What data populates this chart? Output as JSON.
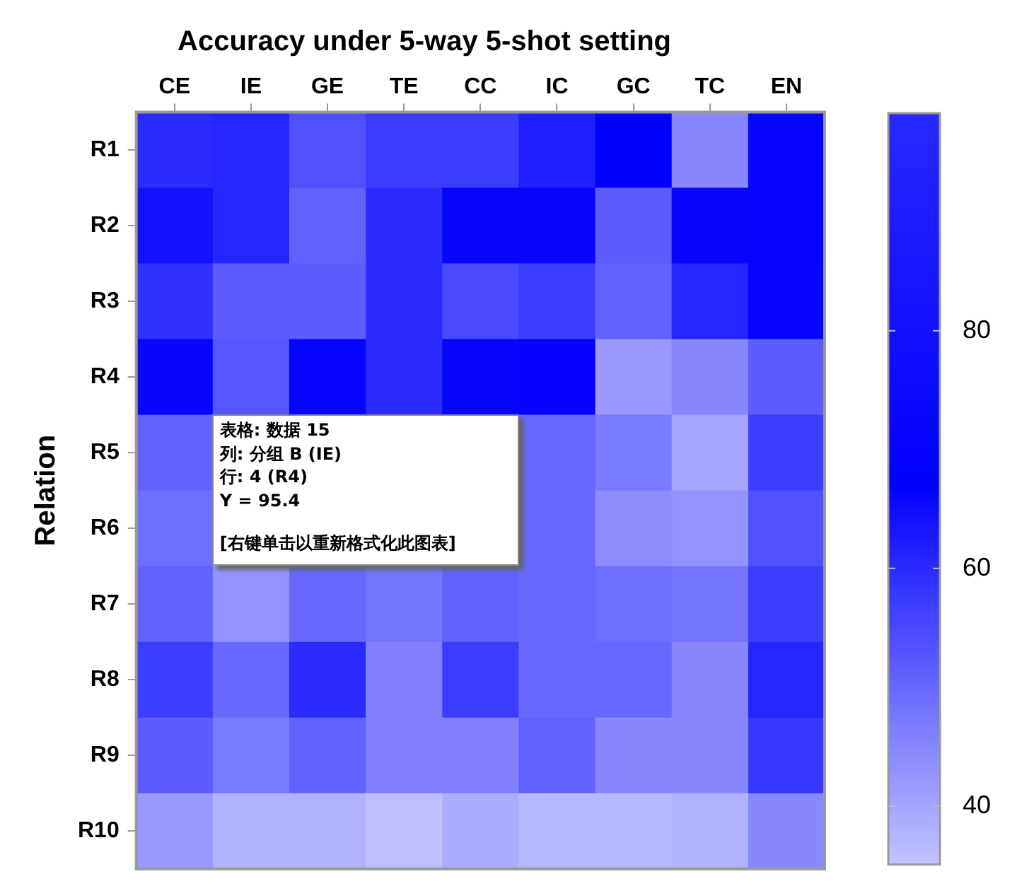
{
  "chart_data": {
    "type": "heatmap",
    "title": "Accuracy under 5-way 5-shot setting",
    "ylabel": "Relation",
    "categories": [
      "CE",
      "IE",
      "GE",
      "TE",
      "CC",
      "IC",
      "GC",
      "TC",
      "EN"
    ],
    "y_categories": [
      "R1",
      "R2",
      "R3",
      "R4",
      "R5",
      "R6",
      "R7",
      "R8",
      "R9",
      "R10"
    ],
    "cells": [
      [
        60,
        61,
        54,
        57,
        57,
        62,
        68,
        45,
        70
      ],
      [
        64,
        61,
        51,
        60,
        72,
        72,
        52,
        66,
        70
      ],
      [
        59,
        52,
        52,
        60,
        55,
        57,
        51,
        61,
        71
      ],
      [
        66,
        53,
        70,
        60,
        66,
        69,
        42,
        45,
        52
      ],
      [
        51,
        null,
        null,
        null,
        null,
        50,
        47,
        40,
        57
      ],
      [
        49,
        null,
        null,
        null,
        null,
        50,
        44,
        43,
        54
      ],
      [
        51,
        43,
        50,
        48,
        51,
        50,
        49,
        48,
        57
      ],
      [
        57,
        50,
        60,
        46,
        57,
        50,
        50,
        45,
        61
      ],
      [
        52,
        47,
        51,
        46,
        46,
        51,
        45,
        45,
        58
      ],
      [
        42,
        38,
        38,
        36,
        39,
        37,
        37,
        38,
        45
      ]
    ],
    "clim": [
      35.1,
      98.3
    ],
    "cticks": [
      40,
      60,
      80
    ],
    "annotations": [
      "表格: 数据 15",
      "列: 分组 B (IE)",
      "行: 4 (R4)",
      "Y = 95.4",
      "[右键单击以重新格式化此图表]"
    ]
  }
}
